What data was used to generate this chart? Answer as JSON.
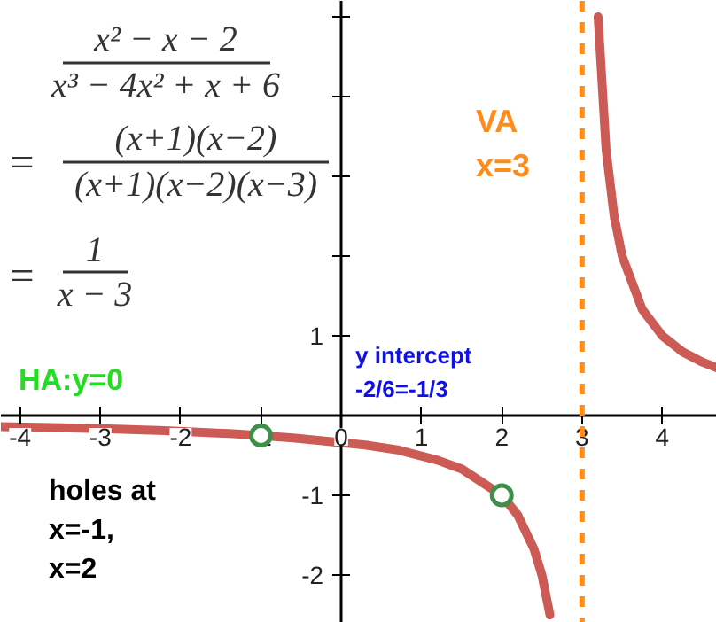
{
  "chart_data": {
    "type": "line",
    "series": [
      {
        "color": "#cd5b55",
        "x": [
          -4.24,
          -3.6,
          -2.8,
          -2.2,
          -1.3,
          -0.6,
          0.3,
          0.7,
          1.2,
          1.5,
          2,
          2.2,
          2.4,
          2.5,
          2.6
        ],
        "values": [
          -0.14,
          -0.15,
          -0.17,
          -0.19,
          -0.23,
          -0.28,
          -0.37,
          -0.43,
          -0.56,
          -0.67,
          -1,
          -1.25,
          -1.67,
          -2,
          -2.5
        ]
      },
      {
        "color": "#cd5b55",
        "x": [
          3.2,
          3.3,
          3.4,
          3.5,
          3.75,
          4,
          4.25,
          4.5,
          4.68
        ],
        "values": [
          5,
          3.33,
          2.5,
          2,
          1.33,
          1,
          0.8,
          0.67,
          0.6
        ]
      },
      {
        "type": "scatter",
        "color": "#3d8f4a",
        "marker": "circle",
        "x": [
          -1,
          2
        ],
        "values": [
          -0.25,
          -1
        ]
      }
    ],
    "xlim": [
      -4.24,
      4.68
    ],
    "ylim": [
      -2.6,
      5.2
    ],
    "xticks": [
      -4,
      -3,
      -2,
      -1,
      0,
      1,
      2,
      3,
      4
    ],
    "yticks": [
      -2,
      -1,
      1,
      {
        "value": 2,
        "label": null
      },
      {
        "value": 3,
        "label": null
      },
      {
        "value": 4,
        "label": null
      },
      {
        "value": 5,
        "label": null
      }
    ],
    "ref_lines": [
      {
        "axis": "x",
        "value": 3,
        "label": "VA\nx=3",
        "color": "#ff8c1a",
        "line_style": "dashed"
      }
    ],
    "annotations": [
      "x² − x − 2",
      "x³ − 4x² + x + 6",
      "(x+1)(x−2)",
      "(x+1)(x−2)(x−3)",
      "1",
      "x − 3",
      "=",
      "=",
      "HA:y=0",
      "y intercept\n-2/6=-1/3",
      "holes at\nx=-1,\nx=2"
    ],
    "grid": false
  }
}
